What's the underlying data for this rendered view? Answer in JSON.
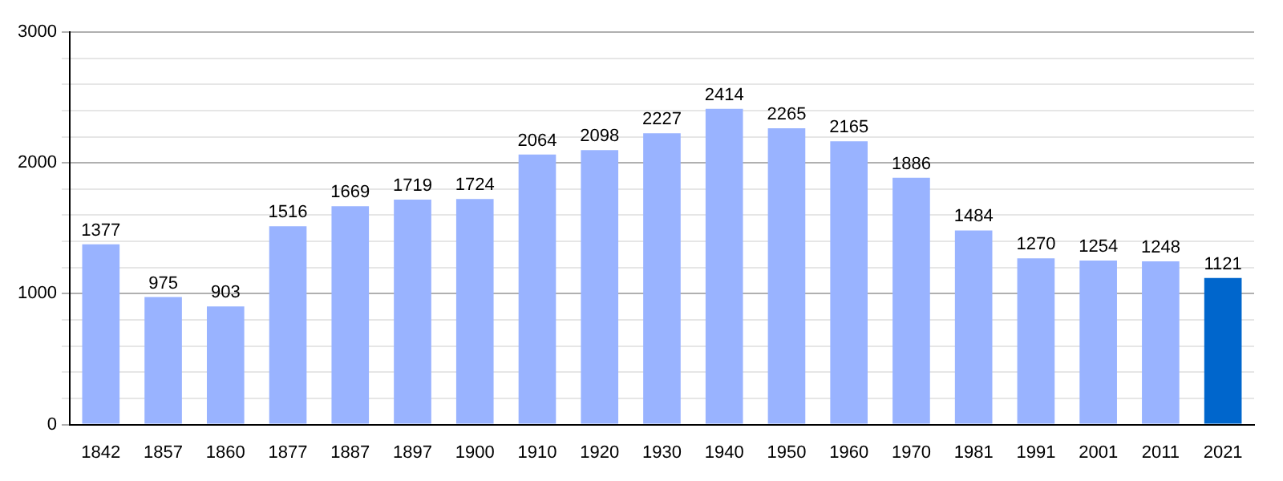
{
  "chart_data": {
    "type": "bar",
    "categories": [
      "1842",
      "1857",
      "1860",
      "1877",
      "1887",
      "1897",
      "1900",
      "1910",
      "1920",
      "1930",
      "1940",
      "1950",
      "1960",
      "1970",
      "1981",
      "1991",
      "2001",
      "2011",
      "2021"
    ],
    "values": [
      1377,
      975,
      903,
      1516,
      1669,
      1719,
      1724,
      2064,
      2098,
      2227,
      2414,
      2265,
      2165,
      1886,
      1484,
      1270,
      1254,
      1248,
      1121
    ],
    "colors": [
      "#99b3ff",
      "#99b3ff",
      "#99b3ff",
      "#99b3ff",
      "#99b3ff",
      "#99b3ff",
      "#99b3ff",
      "#99b3ff",
      "#99b3ff",
      "#99b3ff",
      "#99b3ff",
      "#99b3ff",
      "#99b3ff",
      "#99b3ff",
      "#99b3ff",
      "#99b3ff",
      "#99b3ff",
      "#99b3ff",
      "#0066cc"
    ],
    "ylim": [
      0,
      3000
    ],
    "yticks": [
      0,
      {
        "value": 200,
        "label": null
      },
      {
        "value": 400,
        "label": null
      },
      {
        "value": 600,
        "label": null
      },
      {
        "value": 800,
        "label": null
      },
      1000,
      {
        "value": 1200,
        "label": null
      },
      {
        "value": 1400,
        "label": null
      },
      {
        "value": 1600,
        "label": null
      },
      {
        "value": 1800,
        "label": null
      },
      2000,
      {
        "value": 2200,
        "label": null
      },
      {
        "value": 2400,
        "label": null
      },
      {
        "value": 2600,
        "label": null
      },
      {
        "value": 2800,
        "label": null
      },
      3000
    ],
    "grid": "y",
    "data_labels": true,
    "legend": false
  }
}
